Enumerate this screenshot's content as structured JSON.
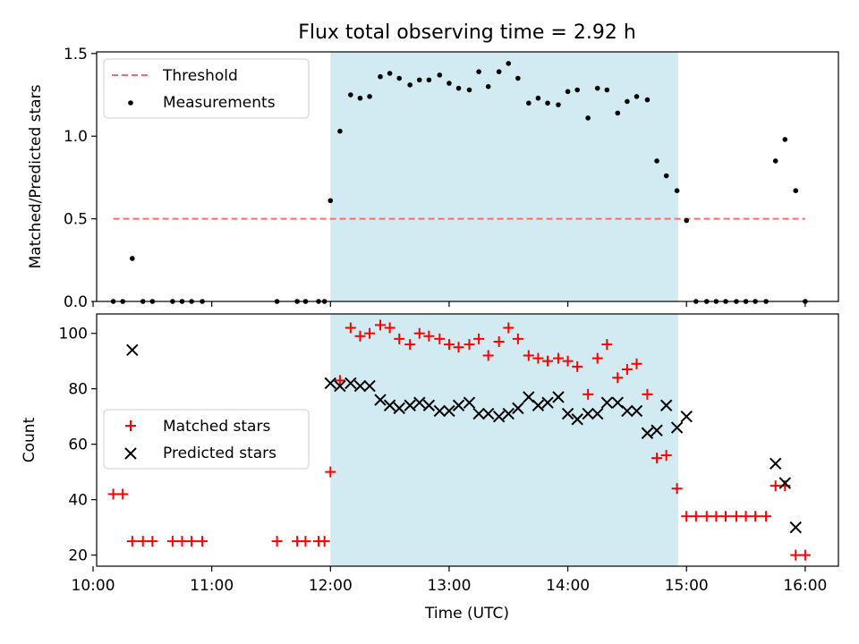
{
  "title": "Flux total observing time = 2.92 h",
  "colors": {
    "threshold": "#ff6b6b",
    "measurement": "#000000",
    "matched": "#ff0000",
    "predicted": "#000000",
    "shade": "#add8e6"
  },
  "chart_data": [
    {
      "type": "scatter",
      "ylabel": "Matched/Predicted stars",
      "xlim": [
        10.03,
        16.28
      ],
      "ylim": [
        0,
        1.51
      ],
      "yticks": [
        0.0,
        0.5,
        1.0,
        1.5
      ],
      "ytick_labels": [
        "0.0",
        "0.5",
        "1.0",
        "1.5"
      ],
      "xticks": [
        10,
        11,
        12,
        13,
        14,
        15,
        16
      ],
      "shaded_span": [
        12.0,
        14.93
      ],
      "legend_placement": "upper left",
      "legend": [
        "Threshold",
        "Measurements"
      ],
      "threshold": {
        "name": "Threshold",
        "x": [
          10.17,
          16.0
        ],
        "y": 0.5,
        "style": "dashed"
      },
      "series": [
        {
          "name": "Measurements",
          "marker": "dot",
          "points": [
            [
              10.17,
              0
            ],
            [
              10.25,
              0
            ],
            [
              10.33,
              0.26
            ],
            [
              10.42,
              0
            ],
            [
              10.5,
              0
            ],
            [
              10.67,
              0
            ],
            [
              10.75,
              0
            ],
            [
              10.83,
              0
            ],
            [
              10.92,
              0
            ],
            [
              11.55,
              0
            ],
            [
              11.72,
              0
            ],
            [
              11.79,
              0
            ],
            [
              11.9,
              0
            ],
            [
              11.95,
              0
            ],
            [
              12.0,
              0.61
            ],
            [
              12.08,
              1.03
            ],
            [
              12.17,
              1.25
            ],
            [
              12.25,
              1.23
            ],
            [
              12.33,
              1.24
            ],
            [
              12.42,
              1.36
            ],
            [
              12.5,
              1.38
            ],
            [
              12.58,
              1.35
            ],
            [
              12.67,
              1.31
            ],
            [
              12.75,
              1.34
            ],
            [
              12.83,
              1.34
            ],
            [
              12.92,
              1.37
            ],
            [
              13.0,
              1.32
            ],
            [
              13.08,
              1.29
            ],
            [
              13.17,
              1.28
            ],
            [
              13.25,
              1.39
            ],
            [
              13.33,
              1.3
            ],
            [
              13.42,
              1.39
            ],
            [
              13.5,
              1.44
            ],
            [
              13.58,
              1.35
            ],
            [
              13.67,
              1.2
            ],
            [
              13.75,
              1.23
            ],
            [
              13.83,
              1.2
            ],
            [
              13.92,
              1.19
            ],
            [
              14.0,
              1.27
            ],
            [
              14.08,
              1.28
            ],
            [
              14.17,
              1.11
            ],
            [
              14.25,
              1.29
            ],
            [
              14.33,
              1.28
            ],
            [
              14.42,
              1.14
            ],
            [
              14.5,
              1.21
            ],
            [
              14.58,
              1.24
            ],
            [
              14.67,
              1.22
            ],
            [
              14.75,
              0.85
            ],
            [
              14.83,
              0.76
            ],
            [
              14.92,
              0.67
            ],
            [
              15.0,
              0.49
            ],
            [
              15.08,
              0
            ],
            [
              15.17,
              0
            ],
            [
              15.25,
              0
            ],
            [
              15.33,
              0
            ],
            [
              15.42,
              0
            ],
            [
              15.5,
              0
            ],
            [
              15.58,
              0
            ],
            [
              15.67,
              0
            ],
            [
              15.75,
              0.85
            ],
            [
              15.83,
              0.98
            ],
            [
              15.92,
              0.67
            ],
            [
              16.0,
              0
            ]
          ]
        }
      ]
    },
    {
      "type": "scatter",
      "ylabel": "Count",
      "xlabel": "Time (UTC)",
      "xlim": [
        10.03,
        16.28
      ],
      "ylim": [
        16,
        107
      ],
      "yticks": [
        20,
        40,
        60,
        80,
        100
      ],
      "ytick_labels": [
        "20",
        "40",
        "60",
        "80",
        "100"
      ],
      "xticks": [
        10,
        11,
        12,
        13,
        14,
        15,
        16
      ],
      "xtick_labels": [
        "10:00",
        "11:00",
        "12:00",
        "13:00",
        "14:00",
        "15:00",
        "16:00"
      ],
      "shaded_span": [
        12.0,
        14.93
      ],
      "legend_placement": "center left",
      "legend": [
        "Matched stars",
        "Predicted stars"
      ],
      "series": [
        {
          "name": "Matched stars",
          "marker": "plus",
          "points": [
            [
              10.17,
              42
            ],
            [
              10.25,
              42
            ],
            [
              10.33,
              25
            ],
            [
              10.42,
              25
            ],
            [
              10.5,
              25
            ],
            [
              10.67,
              25
            ],
            [
              10.75,
              25
            ],
            [
              10.83,
              25
            ],
            [
              10.92,
              25
            ],
            [
              11.55,
              25
            ],
            [
              11.72,
              25
            ],
            [
              11.79,
              25
            ],
            [
              11.9,
              25
            ],
            [
              11.95,
              25
            ],
            [
              12.0,
              50
            ],
            [
              12.08,
              83
            ],
            [
              12.17,
              102
            ],
            [
              12.25,
              99
            ],
            [
              12.33,
              100
            ],
            [
              12.42,
              103
            ],
            [
              12.5,
              102
            ],
            [
              12.58,
              98
            ],
            [
              12.67,
              96
            ],
            [
              12.75,
              100
            ],
            [
              12.83,
              99
            ],
            [
              12.92,
              98
            ],
            [
              13.0,
              96
            ],
            [
              13.08,
              95
            ],
            [
              13.17,
              96
            ],
            [
              13.25,
              98
            ],
            [
              13.33,
              92
            ],
            [
              13.42,
              97
            ],
            [
              13.5,
              102
            ],
            [
              13.58,
              98
            ],
            [
              13.67,
              92
            ],
            [
              13.75,
              91
            ],
            [
              13.83,
              90
            ],
            [
              13.92,
              91
            ],
            [
              14.0,
              90
            ],
            [
              14.08,
              88
            ],
            [
              14.17,
              78
            ],
            [
              14.25,
              91
            ],
            [
              14.33,
              96
            ],
            [
              14.42,
              84
            ],
            [
              14.5,
              87
            ],
            [
              14.58,
              89
            ],
            [
              14.67,
              78
            ],
            [
              14.75,
              55
            ],
            [
              14.83,
              56
            ],
            [
              14.92,
              44
            ],
            [
              15.0,
              34
            ],
            [
              15.08,
              34
            ],
            [
              15.17,
              34
            ],
            [
              15.25,
              34
            ],
            [
              15.33,
              34
            ],
            [
              15.42,
              34
            ],
            [
              15.5,
              34
            ],
            [
              15.58,
              34
            ],
            [
              15.67,
              34
            ],
            [
              15.75,
              45
            ],
            [
              15.83,
              45
            ],
            [
              15.92,
              20
            ],
            [
              16.0,
              20
            ]
          ]
        },
        {
          "name": "Predicted stars",
          "marker": "x",
          "points": [
            [
              10.33,
              94
            ],
            [
              12.0,
              82
            ],
            [
              12.08,
              81
            ],
            [
              12.17,
              82
            ],
            [
              12.25,
              81
            ],
            [
              12.33,
              81
            ],
            [
              12.42,
              76
            ],
            [
              12.5,
              74
            ],
            [
              12.58,
              73
            ],
            [
              12.67,
              74
            ],
            [
              12.75,
              75
            ],
            [
              12.83,
              74
            ],
            [
              12.92,
              72
            ],
            [
              13.0,
              72
            ],
            [
              13.08,
              74
            ],
            [
              13.17,
              75
            ],
            [
              13.25,
              71
            ],
            [
              13.33,
              71
            ],
            [
              13.42,
              70
            ],
            [
              13.5,
              71
            ],
            [
              13.58,
              73
            ],
            [
              13.67,
              77
            ],
            [
              13.75,
              74
            ],
            [
              13.83,
              75
            ],
            [
              13.92,
              77
            ],
            [
              14.0,
              71
            ],
            [
              14.08,
              69
            ],
            [
              14.17,
              71
            ],
            [
              14.25,
              71
            ],
            [
              14.33,
              75
            ],
            [
              14.42,
              75
            ],
            [
              14.5,
              72
            ],
            [
              14.58,
              72
            ],
            [
              14.67,
              64
            ],
            [
              14.75,
              65
            ],
            [
              14.83,
              74
            ],
            [
              14.92,
              66
            ],
            [
              15.0,
              70
            ],
            [
              15.75,
              53
            ],
            [
              15.83,
              46
            ],
            [
              15.92,
              30
            ]
          ]
        }
      ]
    }
  ]
}
